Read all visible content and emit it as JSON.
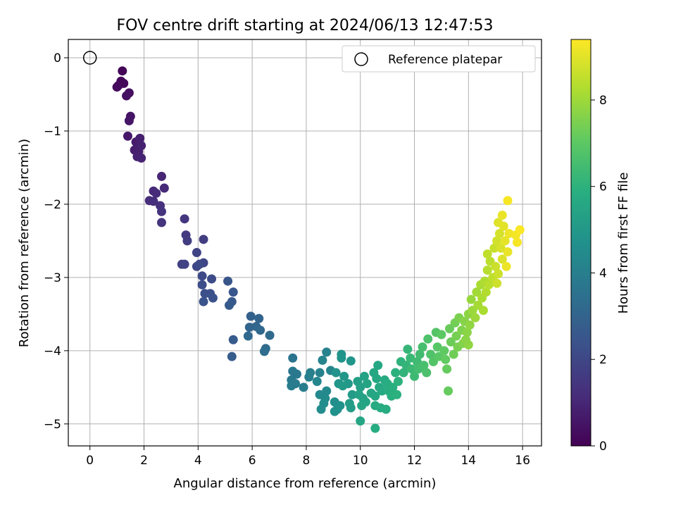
{
  "chart_data": {
    "type": "scatter",
    "title": "FOV centre drift starting at 2024/06/13 12:47:53",
    "xlabel": "Angular distance from reference (arcmin)",
    "ylabel": "Rotation from reference (arcmin)",
    "xlim": [
      -0.8,
      16.7
    ],
    "ylim": [
      -5.3,
      0.25
    ],
    "xticks": [
      0,
      2,
      4,
      6,
      8,
      10,
      12,
      14,
      16
    ],
    "yticks": [
      0,
      -1,
      -2,
      -3,
      -4,
      -5
    ],
    "grid": true,
    "legend": {
      "location": "top-right",
      "entries": [
        "Reference platepar"
      ]
    },
    "reference_point": {
      "x": 0,
      "y": 0
    },
    "colorbar": {
      "label": "Hours from first FF file",
      "colormap": "viridis",
      "range": [
        0,
        9.4
      ],
      "ticks": [
        0,
        2,
        4,
        6,
        8
      ]
    },
    "series": [
      {
        "marker": "filled-circle",
        "points": [
          {
            "x": 1.2,
            "y": -0.18,
            "h": 0.1
          },
          {
            "x": 1.25,
            "y": -0.35,
            "h": 0.2
          },
          {
            "x": 1.15,
            "y": -0.32,
            "h": 0.15
          },
          {
            "x": 1.05,
            "y": -0.38,
            "h": 0.2
          },
          {
            "x": 1.0,
            "y": -0.4,
            "h": 0.3
          },
          {
            "x": 1.45,
            "y": -0.48,
            "h": 0.35
          },
          {
            "x": 1.35,
            "y": -0.52,
            "h": 0.4
          },
          {
            "x": 1.5,
            "y": -0.8,
            "h": 0.5
          },
          {
            "x": 1.45,
            "y": -0.86,
            "h": 0.55
          },
          {
            "x": 1.4,
            "y": -1.07,
            "h": 0.6
          },
          {
            "x": 1.7,
            "y": -1.15,
            "h": 0.7
          },
          {
            "x": 1.65,
            "y": -1.26,
            "h": 0.75
          },
          {
            "x": 1.8,
            "y": -1.28,
            "h": 0.8
          },
          {
            "x": 1.75,
            "y": -1.35,
            "h": 0.85
          },
          {
            "x": 1.9,
            "y": -1.37,
            "h": 0.9
          },
          {
            "x": 1.85,
            "y": -1.1,
            "h": 0.8
          },
          {
            "x": 1.9,
            "y": -1.2,
            "h": 0.85
          },
          {
            "x": 2.65,
            "y": -1.62,
            "h": 1.0
          },
          {
            "x": 2.35,
            "y": -1.82,
            "h": 1.1
          },
          {
            "x": 2.45,
            "y": -1.85,
            "h": 1.15
          },
          {
            "x": 2.75,
            "y": -1.78,
            "h": 1.1
          },
          {
            "x": 2.2,
            "y": -1.95,
            "h": 1.2
          },
          {
            "x": 2.35,
            "y": -1.96,
            "h": 1.25
          },
          {
            "x": 2.6,
            "y": -2.02,
            "h": 1.3
          },
          {
            "x": 2.65,
            "y": -2.1,
            "h": 1.35
          },
          {
            "x": 2.65,
            "y": -2.25,
            "h": 1.4
          },
          {
            "x": 3.5,
            "y": -2.2,
            "h": 1.5
          },
          {
            "x": 3.55,
            "y": -2.42,
            "h": 1.6
          },
          {
            "x": 3.6,
            "y": -2.5,
            "h": 1.65
          },
          {
            "x": 4.2,
            "y": -2.48,
            "h": 1.7
          },
          {
            "x": 3.4,
            "y": -2.82,
            "h": 1.8
          },
          {
            "x": 3.5,
            "y": -2.82,
            "h": 1.85
          },
          {
            "x": 3.95,
            "y": -2.66,
            "h": 1.9
          },
          {
            "x": 4.2,
            "y": -2.8,
            "h": 1.95
          },
          {
            "x": 3.95,
            "y": -2.85,
            "h": 2.0
          },
          {
            "x": 4.05,
            "y": -2.82,
            "h": 2.05
          },
          {
            "x": 4.15,
            "y": -2.98,
            "h": 2.1
          },
          {
            "x": 4.5,
            "y": -3.02,
            "h": 2.15
          },
          {
            "x": 4.15,
            "y": -3.1,
            "h": 2.2
          },
          {
            "x": 4.25,
            "y": -3.22,
            "h": 2.25
          },
          {
            "x": 4.45,
            "y": -3.22,
            "h": 2.3
          },
          {
            "x": 4.55,
            "y": -3.28,
            "h": 2.35
          },
          {
            "x": 4.2,
            "y": -3.33,
            "h": 2.4
          },
          {
            "x": 5.1,
            "y": -3.05,
            "h": 2.5
          },
          {
            "x": 5.3,
            "y": -3.2,
            "h": 2.55
          },
          {
            "x": 5.25,
            "y": -3.33,
            "h": 2.6
          },
          {
            "x": 5.15,
            "y": -3.38,
            "h": 2.65
          },
          {
            "x": 5.3,
            "y": -3.85,
            "h": 2.7
          },
          {
            "x": 5.25,
            "y": -4.08,
            "h": 2.75
          },
          {
            "x": 5.95,
            "y": -3.53,
            "h": 2.9
          },
          {
            "x": 6.25,
            "y": -3.56,
            "h": 3.0
          },
          {
            "x": 5.9,
            "y": -3.68,
            "h": 3.05
          },
          {
            "x": 6.15,
            "y": -3.67,
            "h": 3.1
          },
          {
            "x": 6.3,
            "y": -3.72,
            "h": 3.15
          },
          {
            "x": 5.85,
            "y": -3.8,
            "h": 3.2
          },
          {
            "x": 6.65,
            "y": -3.79,
            "h": 3.25
          },
          {
            "x": 6.5,
            "y": -3.97,
            "h": 3.3
          },
          {
            "x": 6.45,
            "y": -4.01,
            "h": 3.35
          },
          {
            "x": 7.5,
            "y": -4.1,
            "h": 3.6
          },
          {
            "x": 7.5,
            "y": -4.28,
            "h": 3.7
          },
          {
            "x": 7.65,
            "y": -4.32,
            "h": 3.75
          },
          {
            "x": 7.45,
            "y": -4.4,
            "h": 3.8
          },
          {
            "x": 7.6,
            "y": -4.45,
            "h": 3.85
          },
          {
            "x": 7.45,
            "y": -4.48,
            "h": 3.9
          },
          {
            "x": 7.9,
            "y": -4.5,
            "h": 3.95
          },
          {
            "x": 8.15,
            "y": -4.3,
            "h": 4.0
          },
          {
            "x": 8.1,
            "y": -4.36,
            "h": 4.05
          },
          {
            "x": 8.5,
            "y": -4.3,
            "h": 4.1
          },
          {
            "x": 8.75,
            "y": -4.02,
            "h": 4.15
          },
          {
            "x": 8.6,
            "y": -4.13,
            "h": 4.2
          },
          {
            "x": 8.9,
            "y": -4.27,
            "h": 4.25
          },
          {
            "x": 8.4,
            "y": -4.42,
            "h": 4.3
          },
          {
            "x": 8.75,
            "y": -4.55,
            "h": 4.35
          },
          {
            "x": 8.5,
            "y": -4.6,
            "h": 4.4
          },
          {
            "x": 8.7,
            "y": -4.65,
            "h": 4.45
          },
          {
            "x": 8.65,
            "y": -4.72,
            "h": 4.5
          },
          {
            "x": 8.55,
            "y": -4.8,
            "h": 4.55
          },
          {
            "x": 9.05,
            "y": -4.7,
            "h": 4.6
          },
          {
            "x": 9.15,
            "y": -4.8,
            "h": 4.65
          },
          {
            "x": 9.05,
            "y": -4.83,
            "h": 4.7
          },
          {
            "x": 9.25,
            "y": -4.75,
            "h": 4.75
          },
          {
            "x": 9.1,
            "y": -4.3,
            "h": 4.8
          },
          {
            "x": 9.2,
            "y": -4.45,
            "h": 4.85
          },
          {
            "x": 9.3,
            "y": -4.05,
            "h": 4.8
          },
          {
            "x": 9.3,
            "y": -4.1,
            "h": 4.85
          },
          {
            "x": 9.65,
            "y": -4.14,
            "h": 4.9
          },
          {
            "x": 9.4,
            "y": -4.35,
            "h": 4.95
          },
          {
            "x": 9.55,
            "y": -4.45,
            "h": 5.0
          },
          {
            "x": 9.35,
            "y": -4.48,
            "h": 5.05
          },
          {
            "x": 9.7,
            "y": -4.6,
            "h": 5.1
          },
          {
            "x": 9.6,
            "y": -4.72,
            "h": 5.15
          },
          {
            "x": 9.65,
            "y": -4.78,
            "h": 5.2
          },
          {
            "x": 9.9,
            "y": -4.42,
            "h": 5.25
          },
          {
            "x": 10.0,
            "y": -4.5,
            "h": 5.3
          },
          {
            "x": 9.95,
            "y": -4.6,
            "h": 5.35
          },
          {
            "x": 10.1,
            "y": -4.65,
            "h": 5.4
          },
          {
            "x": 10.2,
            "y": -4.7,
            "h": 5.45
          },
          {
            "x": 10.05,
            "y": -4.75,
            "h": 5.5
          },
          {
            "x": 10.15,
            "y": -4.35,
            "h": 5.4
          },
          {
            "x": 10.25,
            "y": -4.45,
            "h": 5.45
          },
          {
            "x": 10.0,
            "y": -4.96,
            "h": 5.5
          },
          {
            "x": 10.4,
            "y": -4.58,
            "h": 5.55
          },
          {
            "x": 10.55,
            "y": -4.62,
            "h": 5.6
          },
          {
            "x": 10.5,
            "y": -4.3,
            "h": 5.55
          },
          {
            "x": 10.6,
            "y": -4.38,
            "h": 5.6
          },
          {
            "x": 10.7,
            "y": -4.5,
            "h": 5.65
          },
          {
            "x": 10.8,
            "y": -4.55,
            "h": 5.7
          },
          {
            "x": 10.65,
            "y": -4.2,
            "h": 5.6
          },
          {
            "x": 10.9,
            "y": -4.4,
            "h": 5.7
          },
          {
            "x": 10.55,
            "y": -4.75,
            "h": 5.7
          },
          {
            "x": 10.75,
            "y": -4.78,
            "h": 5.75
          },
          {
            "x": 10.95,
            "y": -4.8,
            "h": 5.8
          },
          {
            "x": 10.55,
            "y": -5.06,
            "h": 5.8
          },
          {
            "x": 11.0,
            "y": -4.45,
            "h": 5.8
          },
          {
            "x": 11.05,
            "y": -4.55,
            "h": 5.85
          },
          {
            "x": 11.2,
            "y": -4.5,
            "h": 5.9
          },
          {
            "x": 11.15,
            "y": -4.62,
            "h": 5.9
          },
          {
            "x": 11.35,
            "y": -4.6,
            "h": 5.95
          },
          {
            "x": 11.3,
            "y": -4.3,
            "h": 5.95
          },
          {
            "x": 11.4,
            "y": -4.42,
            "h": 6.0
          },
          {
            "x": 11.5,
            "y": -4.15,
            "h": 6.05
          },
          {
            "x": 11.6,
            "y": -4.3,
            "h": 6.1
          },
          {
            "x": 11.7,
            "y": -4.2,
            "h": 6.15
          },
          {
            "x": 11.75,
            "y": -3.98,
            "h": 6.2
          },
          {
            "x": 11.85,
            "y": -4.1,
            "h": 6.25
          },
          {
            "x": 11.9,
            "y": -4.25,
            "h": 6.3
          },
          {
            "x": 12.0,
            "y": -4.35,
            "h": 6.35
          },
          {
            "x": 12.1,
            "y": -4.15,
            "h": 6.4
          },
          {
            "x": 12.2,
            "y": -4.05,
            "h": 6.45
          },
          {
            "x": 12.15,
            "y": -4.25,
            "h": 6.5
          },
          {
            "x": 12.3,
            "y": -3.95,
            "h": 6.55
          },
          {
            "x": 12.35,
            "y": -4.2,
            "h": 6.6
          },
          {
            "x": 12.45,
            "y": -4.3,
            "h": 6.65
          },
          {
            "x": 12.5,
            "y": -3.84,
            "h": 6.7
          },
          {
            "x": 12.6,
            "y": -4.05,
            "h": 6.75
          },
          {
            "x": 12.7,
            "y": -4.15,
            "h": 6.8
          },
          {
            "x": 12.8,
            "y": -3.75,
            "h": 6.85
          },
          {
            "x": 12.85,
            "y": -3.95,
            "h": 6.9
          },
          {
            "x": 12.9,
            "y": -4.08,
            "h": 6.95
          },
          {
            "x": 13.0,
            "y": -3.78,
            "h": 7.0
          },
          {
            "x": 13.1,
            "y": -4.0,
            "h": 7.05
          },
          {
            "x": 13.15,
            "y": -4.12,
            "h": 7.1
          },
          {
            "x": 13.2,
            "y": -4.25,
            "h": 7.15
          },
          {
            "x": 13.25,
            "y": -4.55,
            "h": 7.15
          },
          {
            "x": 13.3,
            "y": -3.7,
            "h": 7.2
          },
          {
            "x": 13.35,
            "y": -3.88,
            "h": 7.25
          },
          {
            "x": 13.45,
            "y": -4.05,
            "h": 7.3
          },
          {
            "x": 13.5,
            "y": -3.62,
            "h": 7.35
          },
          {
            "x": 13.55,
            "y": -3.8,
            "h": 7.4
          },
          {
            "x": 13.6,
            "y": -3.95,
            "h": 7.45
          },
          {
            "x": 13.65,
            "y": -3.55,
            "h": 7.5
          },
          {
            "x": 13.75,
            "y": -3.72,
            "h": 7.55
          },
          {
            "x": 13.8,
            "y": -3.9,
            "h": 7.6
          },
          {
            "x": 13.85,
            "y": -3.6,
            "h": 7.65
          },
          {
            "x": 13.95,
            "y": -3.75,
            "h": 7.7
          },
          {
            "x": 14.0,
            "y": -3.5,
            "h": 7.75
          },
          {
            "x": 14.05,
            "y": -3.65,
            "h": 7.8
          },
          {
            "x": 14.0,
            "y": -3.92,
            "h": 7.8
          },
          {
            "x": 14.1,
            "y": -3.3,
            "h": 7.9
          },
          {
            "x": 14.15,
            "y": -3.45,
            "h": 7.95
          },
          {
            "x": 14.25,
            "y": -3.55,
            "h": 8.0
          },
          {
            "x": 14.3,
            "y": -3.2,
            "h": 8.05
          },
          {
            "x": 14.35,
            "y": -3.38,
            "h": 8.1
          },
          {
            "x": 14.45,
            "y": -3.1,
            "h": 8.15
          },
          {
            "x": 14.5,
            "y": -3.28,
            "h": 8.2
          },
          {
            "x": 14.6,
            "y": -3.05,
            "h": 8.25
          },
          {
            "x": 14.65,
            "y": -3.2,
            "h": 8.3
          },
          {
            "x": 14.7,
            "y": -2.9,
            "h": 8.35
          },
          {
            "x": 14.75,
            "y": -3.1,
            "h": 8.4
          },
          {
            "x": 14.8,
            "y": -2.78,
            "h": 8.45
          },
          {
            "x": 14.9,
            "y": -3.0,
            "h": 8.5
          },
          {
            "x": 14.7,
            "y": -2.68,
            "h": 8.5
          },
          {
            "x": 14.95,
            "y": -2.6,
            "h": 8.6
          },
          {
            "x": 15.0,
            "y": -2.85,
            "h": 8.65
          },
          {
            "x": 15.1,
            "y": -2.95,
            "h": 8.7
          },
          {
            "x": 15.05,
            "y": -2.5,
            "h": 8.75
          },
          {
            "x": 15.15,
            "y": -2.4,
            "h": 8.8
          },
          {
            "x": 15.2,
            "y": -2.6,
            "h": 8.85
          },
          {
            "x": 15.25,
            "y": -2.75,
            "h": 8.9
          },
          {
            "x": 15.1,
            "y": -2.25,
            "h": 8.95
          },
          {
            "x": 15.3,
            "y": -2.3,
            "h": 9.0
          },
          {
            "x": 15.35,
            "y": -2.5,
            "h": 9.05
          },
          {
            "x": 15.45,
            "y": -2.65,
            "h": 9.1
          },
          {
            "x": 15.25,
            "y": -2.15,
            "h": 9.1
          },
          {
            "x": 15.4,
            "y": -2.85,
            "h": 9.15
          },
          {
            "x": 15.5,
            "y": -2.4,
            "h": 9.2
          },
          {
            "x": 15.45,
            "y": -1.95,
            "h": 9.3
          },
          {
            "x": 15.75,
            "y": -2.42,
            "h": 9.25
          },
          {
            "x": 15.8,
            "y": -2.52,
            "h": 9.3
          },
          {
            "x": 15.9,
            "y": -2.35,
            "h": 9.35
          },
          {
            "x": 15.05,
            "y": -3.08,
            "h": 8.7
          },
          {
            "x": 14.55,
            "y": -3.45,
            "h": 8.2
          },
          {
            "x": 13.9,
            "y": -3.85,
            "h": 7.7
          }
        ]
      }
    ]
  }
}
